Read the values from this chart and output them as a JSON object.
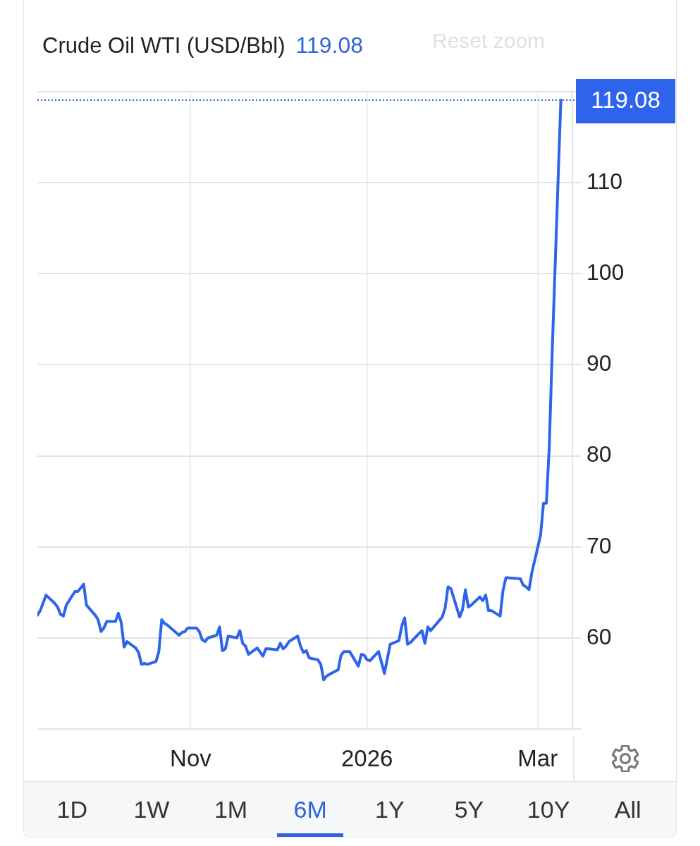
{
  "chart_data": {
    "type": "line",
    "title": "Crude Oil WTI (USD/Bbl)",
    "subtitle": "119.08",
    "x": [
      "2025-09-09",
      "2025-09-10",
      "2025-09-12",
      "2025-09-15",
      "2025-09-16",
      "2025-09-17",
      "2025-09-18",
      "2025-09-19",
      "2025-09-22",
      "2025-09-23",
      "2025-09-25",
      "2025-09-26",
      "2025-09-29",
      "2025-09-30",
      "2025-10-01",
      "2025-10-02",
      "2025-10-03",
      "2025-10-06",
      "2025-10-07",
      "2025-10-08",
      "2025-10-09",
      "2025-10-10",
      "2025-10-13",
      "2025-10-14",
      "2025-10-15",
      "2025-10-16",
      "2025-10-17",
      "2025-10-20",
      "2025-10-21",
      "2025-10-22",
      "2025-10-23",
      "2025-10-24",
      "2025-10-28",
      "2025-10-29",
      "2025-10-30",
      "2025-10-31",
      "2025-11-03",
      "2025-11-04",
      "2025-11-05",
      "2025-11-06",
      "2025-11-07",
      "2025-11-10",
      "2025-11-11",
      "2025-11-12",
      "2025-11-13",
      "2025-11-14",
      "2025-11-17",
      "2025-11-18",
      "2025-11-19",
      "2025-11-20",
      "2025-11-21",
      "2025-11-24",
      "2025-11-26",
      "2025-11-27",
      "2025-11-28",
      "2025-12-01",
      "2025-12-02",
      "2025-12-03",
      "2025-12-04",
      "2025-12-05",
      "2025-12-08",
      "2025-12-09",
      "2025-12-10",
      "2025-12-11",
      "2025-12-12",
      "2025-12-15",
      "2025-12-16",
      "2025-12-17",
      "2025-12-18",
      "2025-12-19",
      "2025-12-22",
      "2025-12-23",
      "2025-12-24",
      "2025-12-26",
      "2025-12-29",
      "2025-12-30",
      "2025-12-31",
      "2026-01-01",
      "2026-01-02",
      "2026-01-05",
      "2026-01-06",
      "2026-01-07",
      "2026-01-08",
      "2026-01-09",
      "2026-01-12",
      "2026-01-13",
      "2026-01-14",
      "2026-01-15",
      "2026-01-16",
      "2026-01-19",
      "2026-01-20",
      "2026-01-21",
      "2026-01-22",
      "2026-01-23",
      "2026-01-27",
      "2026-01-28",
      "2026-01-29",
      "2026-01-30",
      "2026-02-02",
      "2026-02-03",
      "2026-02-04",
      "2026-02-05",
      "2026-02-06",
      "2026-02-09",
      "2026-02-10",
      "2026-02-11",
      "2026-02-12",
      "2026-02-13",
      "2026-02-16",
      "2026-02-17",
      "2026-02-18",
      "2026-02-19",
      "2026-02-23",
      "2026-02-24",
      "2026-02-25",
      "2026-02-26",
      "2026-02-27",
      "2026-03-02",
      "2026-03-03",
      "2026-03-04",
      "2026-03-05",
      "2026-03-06",
      "2026-03-09"
    ],
    "values": [
      62.5,
      63.0,
      64.7,
      63.8,
      63.4,
      62.6,
      62.4,
      63.6,
      65.1,
      65.1,
      65.9,
      63.6,
      62.5,
      62.0,
      60.7,
      61.1,
      61.8,
      61.8,
      62.7,
      61.7,
      59.0,
      59.6,
      58.9,
      58.4,
      57.1,
      57.2,
      57.1,
      57.4,
      58.5,
      62.0,
      61.6,
      61.4,
      60.3,
      60.6,
      60.7,
      61.1,
      61.1,
      60.7,
      59.8,
      59.6,
      60.0,
      60.3,
      61.2,
      58.6,
      58.8,
      60.2,
      60.0,
      60.8,
      59.4,
      59.1,
      58.2,
      58.9,
      58.0,
      58.8,
      58.8,
      58.7,
      59.4,
      58.8,
      59.1,
      59.6,
      60.2,
      59.1,
      58.4,
      58.6,
      57.8,
      57.6,
      57.1,
      55.4,
      55.8,
      56.0,
      56.5,
      58.1,
      58.5,
      58.5,
      56.9,
      58.2,
      58.1,
      57.6,
      57.5,
      58.5,
      57.3,
      56.1,
      57.7,
      59.3,
      59.7,
      61.3,
      62.2,
      59.3,
      59.5,
      60.5,
      60.8,
      59.4,
      61.2,
      60.8,
      62.3,
      63.3,
      65.6,
      65.4,
      62.3,
      63.1,
      65.3,
      63.4,
      63.6,
      64.5,
      64.1,
      64.7,
      63.0,
      63.0,
      62.4,
      65.2,
      66.6,
      66.6,
      66.5,
      65.8,
      65.6,
      65.3,
      67.2,
      71.3,
      74.8,
      74.8,
      81.0,
      91.3,
      119.08
    ],
    "color": "#2d64eb",
    "marker": "none",
    "xlim": [
      "2025-09-09",
      "2026-03-13"
    ],
    "xticks": [
      {
        "value": "2025-11-01",
        "label": "Nov"
      },
      {
        "value": "2026-01-01",
        "label": "2026"
      },
      {
        "value": "2026-03-01",
        "label": "Mar"
      }
    ],
    "ylim": [
      50,
      120
    ],
    "yticks": [
      {
        "value": 50,
        "label": null
      },
      60,
      70,
      80,
      90,
      100,
      110,
      {
        "value": 120,
        "label": null
      }
    ],
    "grid": true,
    "ref_lines": [
      {
        "axis": "y",
        "value": 119.08,
        "label": "119.08",
        "color": "#2d64eb",
        "line_style": "dotted"
      }
    ],
    "annotations": [
      "Reset zoom",
      "1D",
      "1W",
      "1M",
      "6M",
      "1Y",
      "5Y",
      "10Y",
      "All"
    ]
  }
}
